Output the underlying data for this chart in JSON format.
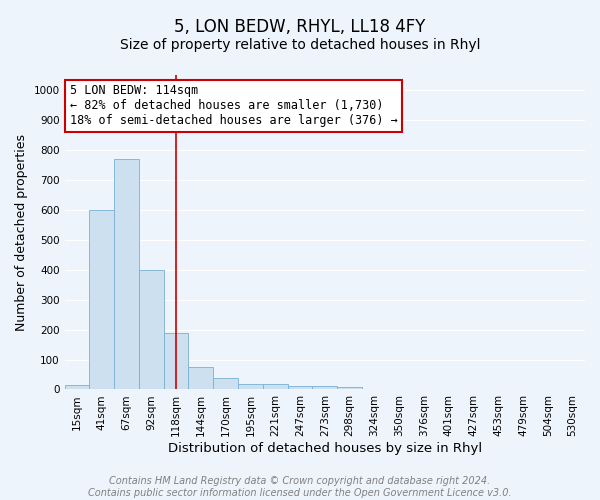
{
  "title": "5, LON BEDW, RHYL, LL18 4FY",
  "subtitle": "Size of property relative to detached houses in Rhyl",
  "xlabel": "Distribution of detached houses by size in Rhyl",
  "ylabel": "Number of detached properties",
  "categories": [
    "15sqm",
    "41sqm",
    "67sqm",
    "92sqm",
    "118sqm",
    "144sqm",
    "170sqm",
    "195sqm",
    "221sqm",
    "247sqm",
    "273sqm",
    "298sqm",
    "324sqm",
    "350sqm",
    "376sqm",
    "401sqm",
    "427sqm",
    "453sqm",
    "479sqm",
    "504sqm",
    "530sqm"
  ],
  "values": [
    15,
    600,
    770,
    400,
    190,
    75,
    38,
    18,
    18,
    12,
    12,
    8,
    0,
    0,
    0,
    0,
    0,
    0,
    0,
    0,
    0
  ],
  "bar_color": "#cce0f0",
  "bar_edge_color": "#7bafd4",
  "vline_color": "#cc0000",
  "vline_x_index": 4,
  "annotation_line1": "5 LON BEDW: 114sqm",
  "annotation_line2": "← 82% of detached houses are smaller (1,730)",
  "annotation_line3": "18% of semi-detached houses are larger (376) →",
  "annotation_box_color": "#ffffff",
  "annotation_box_edge_color": "#cc0000",
  "ylim": [
    0,
    1050
  ],
  "yticks": [
    0,
    100,
    200,
    300,
    400,
    500,
    600,
    700,
    800,
    900,
    1000
  ],
  "footer_line1": "Contains HM Land Registry data © Crown copyright and database right 2024.",
  "footer_line2": "Contains public sector information licensed under the Open Government Licence v3.0.",
  "title_fontsize": 12,
  "subtitle_fontsize": 10,
  "xlabel_fontsize": 9.5,
  "ylabel_fontsize": 9,
  "tick_fontsize": 7.5,
  "footer_fontsize": 7,
  "annotation_fontsize": 8.5,
  "background_color": "#eef4fc",
  "grid_color": "#ffffff",
  "fig_width": 6.0,
  "fig_height": 5.0,
  "fig_dpi": 100
}
